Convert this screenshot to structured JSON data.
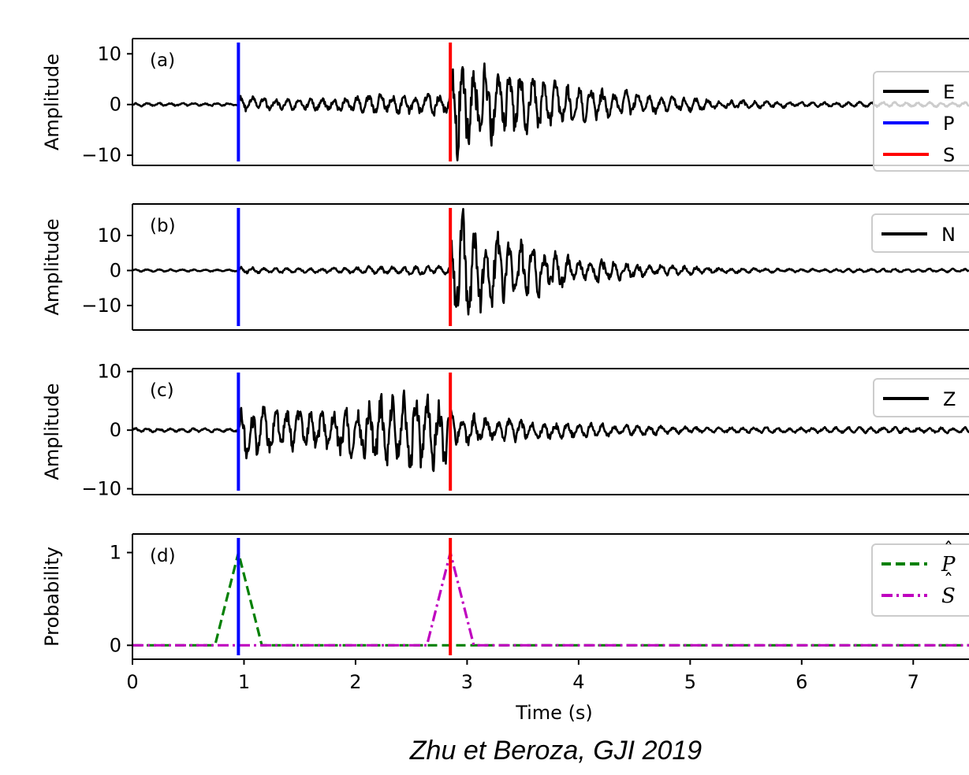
{
  "colors": {
    "waveform": "#000000",
    "p_pick": "#0000ff",
    "s_pick": "#ff0000",
    "p_prob": "#008000",
    "s_prob": "#bf00bf"
  },
  "caption": "Zhu et Beroza, GJI 2019",
  "chart_data": [
    {
      "type": "line",
      "panel_label": "(a)",
      "ylabel": "Amplitude",
      "ylim": [
        -12,
        13
      ],
      "yticks": [
        10,
        0,
        -10
      ],
      "ytick_labels": [
        "10",
        "0",
        "−10"
      ],
      "xlim": [
        0,
        7.5
      ],
      "series": [
        {
          "name": "E",
          "style": "solid",
          "color": "#000000",
          "waveform": {
            "pre_amp": 0.3,
            "p_amp": 2.0,
            "s_peak_amp": 11,
            "coda_decay": 1.0
          }
        }
      ],
      "picks": [
        {
          "name": "P",
          "x": 0.95,
          "color": "#0000ff"
        },
        {
          "name": "S",
          "x": 2.85,
          "color": "#ff0000"
        }
      ],
      "legend": {
        "position": "right",
        "entries": [
          {
            "label": "E",
            "color": "#000000",
            "style": "solid"
          },
          {
            "label": "P",
            "color": "#0000ff",
            "style": "solid"
          },
          {
            "label": "S",
            "color": "#ff0000",
            "style": "solid"
          }
        ]
      }
    },
    {
      "type": "line",
      "panel_label": "(b)",
      "ylabel": "Amplitude",
      "ylim": [
        -17,
        19
      ],
      "yticks": [
        10,
        0,
        -10
      ],
      "ytick_labels": [
        "10",
        "0",
        "−10"
      ],
      "xlim": [
        0,
        7.5
      ],
      "series": [
        {
          "name": "N",
          "style": "solid",
          "color": "#000000",
          "waveform": {
            "pre_amp": 0.3,
            "p_amp": 1.2,
            "s_peak_amp": 16,
            "coda_decay": 1.2
          }
        }
      ],
      "picks": [
        {
          "name": "P",
          "x": 0.95,
          "color": "#0000ff"
        },
        {
          "name": "S",
          "x": 2.85,
          "color": "#ff0000"
        }
      ],
      "legend": {
        "position": "top-right",
        "entries": [
          {
            "label": "N",
            "color": "#000000",
            "style": "solid"
          }
        ]
      }
    },
    {
      "type": "line",
      "panel_label": "(c)",
      "ylabel": "Amplitude",
      "ylim": [
        -11,
        10.5
      ],
      "yticks": [
        10,
        0,
        -10
      ],
      "ytick_labels": [
        "10",
        "0",
        "−10"
      ],
      "xlim": [
        0,
        7.5
      ],
      "series": [
        {
          "name": "Z",
          "style": "solid",
          "color": "#000000",
          "waveform": {
            "pre_amp": 0.3,
            "p_amp": 6.5,
            "s_peak_amp": 3,
            "coda_decay": 0.8
          }
        }
      ],
      "picks": [
        {
          "name": "P",
          "x": 0.95,
          "color": "#0000ff"
        },
        {
          "name": "S",
          "x": 2.85,
          "color": "#ff0000"
        }
      ],
      "legend": {
        "position": "top-right",
        "entries": [
          {
            "label": "Z",
            "color": "#000000",
            "style": "solid"
          }
        ]
      }
    },
    {
      "type": "line",
      "panel_label": "(d)",
      "ylabel": "Probability",
      "ylim": [
        -0.15,
        1.2
      ],
      "yticks": [
        1,
        0
      ],
      "ytick_labels": [
        "1",
        "0"
      ],
      "xlim": [
        0,
        7.5
      ],
      "xlabel": "Time (s)",
      "xticks": [
        0,
        1,
        2,
        3,
        4,
        5,
        6,
        7
      ],
      "xtick_labels": [
        "0",
        "1",
        "2",
        "3",
        "4",
        "5",
        "6",
        "7"
      ],
      "series": [
        {
          "name": "P̂",
          "style": "dashed",
          "color": "#008000",
          "x": [
            0,
            0.74,
            0.95,
            1.16,
            7.5
          ],
          "y": [
            0,
            0,
            1,
            0,
            0
          ]
        },
        {
          "name": "Ŝ",
          "style": "dashdot",
          "color": "#bf00bf",
          "x": [
            0,
            2.64,
            2.85,
            3.06,
            7.5
          ],
          "y": [
            0,
            0,
            1,
            0,
            0
          ]
        }
      ],
      "picks": [
        {
          "name": "P",
          "x": 0.95,
          "color": "#0000ff"
        },
        {
          "name": "S",
          "x": 2.85,
          "color": "#ff0000"
        }
      ],
      "legend": {
        "position": "top-right",
        "entries": [
          {
            "label": "P",
            "hat": true,
            "color": "#008000",
            "style": "dashed"
          },
          {
            "label": "S",
            "hat": true,
            "color": "#bf00bf",
            "style": "dashdot"
          }
        ]
      }
    }
  ]
}
